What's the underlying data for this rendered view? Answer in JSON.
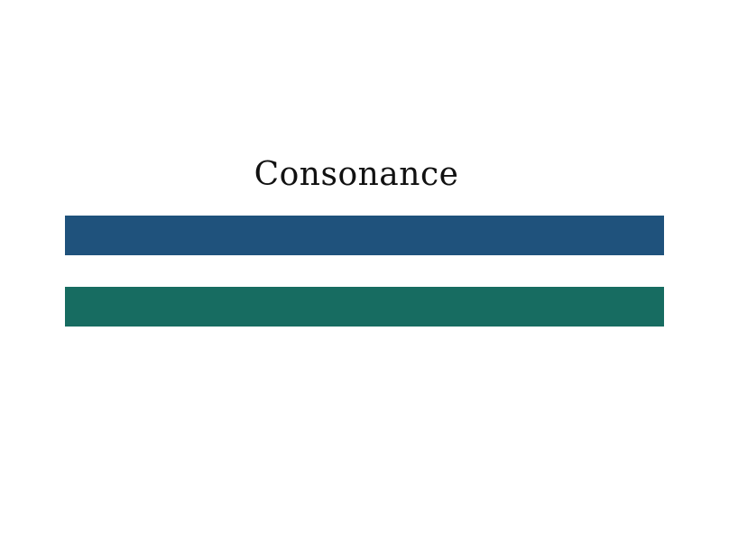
{
  "slide": {
    "title": "Consonance",
    "colors": {
      "background": "#ffffff",
      "title_text": "#111111",
      "bar_top": "#1f527c",
      "bar_bottom": "#176c61"
    }
  }
}
